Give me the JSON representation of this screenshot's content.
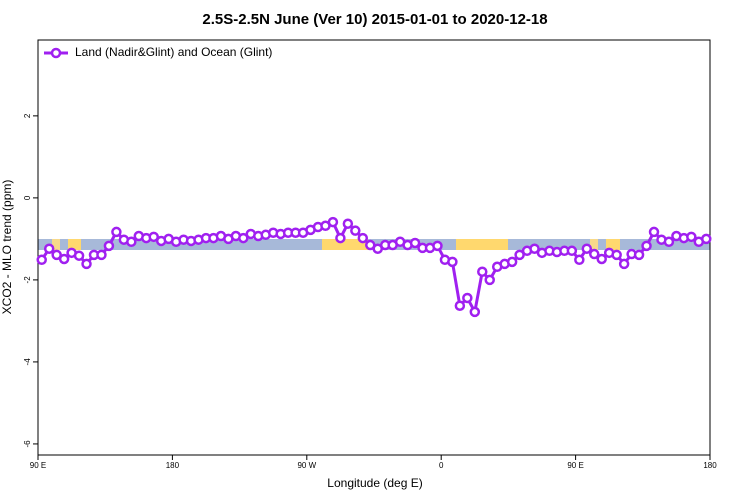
{
  "chart_data": {
    "type": "line",
    "title": "2.5S-2.5N June (Ver 10)   2015-01-01 to 2020-12-18",
    "x_label": "Longitude (deg E)",
    "y_label": "XCO2 - MLO trend (ppm)",
    "xlim": [
      90,
      540
    ],
    "xticks": [
      {
        "value": 90,
        "label": "90 E"
      },
      180,
      {
        "value": 270,
        "label": "90 W"
      },
      {
        "value": 360,
        "label": "0"
      },
      {
        "value": 450,
        "label": "90 E"
      },
      {
        "value": 540,
        "label": "180"
      }
    ],
    "ylim": [
      -6.27,
      3.85
    ],
    "yticks": [
      -6,
      -4,
      -2,
      0,
      2
    ],
    "legend": "top-left",
    "x": [
      92.5,
      97.5,
      102.5,
      107.5,
      112.5,
      117.5,
      122.5,
      127.5,
      132.5,
      137.5,
      142.5,
      147.5,
      152.5,
      157.5,
      162.5,
      167.5,
      172.5,
      177.5,
      182.5,
      187.5,
      192.5,
      197.5,
      202.5,
      207.5,
      212.5,
      217.5,
      222.5,
      227.5,
      232.5,
      237.5,
      242.5,
      247.5,
      252.5,
      257.5,
      262.5,
      267.5,
      272.5,
      277.5,
      282.5,
      287.5,
      292.5,
      297.5,
      302.5,
      307.5,
      312.5,
      317.5,
      322.5,
      327.5,
      332.5,
      337.5,
      342.5,
      347.5,
      352.5,
      357.5,
      362.5,
      367.5,
      372.5,
      377.5,
      382.5,
      387.5,
      392.5,
      397.5,
      402.5,
      407.5,
      412.5,
      417.5,
      422.5,
      427.5,
      432.5,
      437.5,
      442.5,
      447.5,
      452.5,
      457.5,
      462.5,
      467.5,
      472.5,
      477.5,
      482.5,
      487.5,
      492.5,
      497.5,
      502.5,
      507.5,
      512.5,
      517.5,
      522.5,
      527.5,
      532.5,
      537.5
    ],
    "series": [
      {
        "name": "Land (Nadir&Glint) and Ocean (Glint)",
        "color": "#a020f0",
        "values": [
          -1.51,
          -1.24,
          -1.39,
          -1.49,
          -1.34,
          -1.41,
          -1.61,
          -1.39,
          -1.39,
          -1.17,
          -0.83,
          -1.02,
          -1.07,
          -0.93,
          -0.98,
          -0.95,
          -1.05,
          -1.0,
          -1.07,
          -1.02,
          -1.05,
          -1.02,
          -0.98,
          -0.98,
          -0.93,
          -1.0,
          -0.93,
          -0.98,
          -0.88,
          -0.93,
          -0.9,
          -0.85,
          -0.88,
          -0.85,
          -0.85,
          -0.85,
          -0.78,
          -0.71,
          -0.68,
          -0.59,
          -0.98,
          -0.63,
          -0.8,
          -0.98,
          -1.15,
          -1.24,
          -1.15,
          -1.15,
          -1.07,
          -1.15,
          -1.1,
          -1.22,
          -1.22,
          -1.17,
          -1.51,
          -1.56,
          -2.63,
          -2.44,
          -2.78,
          -1.8,
          -2.0,
          -1.68,
          -1.61,
          -1.56,
          -1.39,
          -1.29,
          -1.24,
          -1.34,
          -1.29,
          -1.32,
          -1.29,
          -1.29,
          -1.51,
          -1.24,
          -1.37,
          -1.49,
          -1.34,
          -1.39,
          -1.61,
          -1.37,
          -1.39,
          -1.17,
          -0.83,
          -1.02,
          -1.07,
          -0.93,
          -0.98,
          -0.95,
          -1.07,
          -1.0
        ]
      }
    ]
  }
}
